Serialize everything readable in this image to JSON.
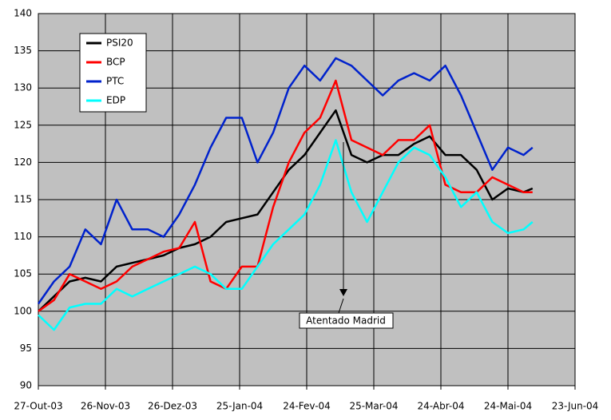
{
  "chart_data": {
    "type": "line",
    "x": [
      "2003-10-27",
      "2003-11-03",
      "2003-11-10",
      "2003-11-17",
      "2003-11-24",
      "2003-12-01",
      "2003-12-08",
      "2003-12-15",
      "2003-12-22",
      "2003-12-29",
      "2004-01-05",
      "2004-01-12",
      "2004-01-19",
      "2004-01-26",
      "2004-02-02",
      "2004-02-09",
      "2004-02-16",
      "2004-02-23",
      "2004-03-01",
      "2004-03-08",
      "2004-03-15",
      "2004-03-22",
      "2004-03-29",
      "2004-04-05",
      "2004-04-12",
      "2004-04-19",
      "2004-04-26",
      "2004-05-03",
      "2004-05-10",
      "2004-05-17",
      "2004-05-24",
      "2004-05-31",
      "2004-06-04"
    ],
    "series": [
      {
        "name": "PSI20",
        "color": "#000000",
        "values": [
          100,
          102,
          104,
          104.5,
          104,
          106,
          106.5,
          107,
          107.5,
          108.5,
          109,
          110,
          112,
          112.5,
          113,
          116,
          119,
          121,
          124,
          127,
          121,
          120,
          121,
          121,
          122.5,
          123.5,
          121,
          121,
          119,
          115,
          116.5,
          116,
          116.5
        ]
      },
      {
        "name": "BCP",
        "color": "#ff0000",
        "values": [
          100,
          101.5,
          105,
          104,
          103,
          104,
          106,
          107,
          108,
          108.5,
          112,
          104,
          103,
          106,
          106,
          114,
          120,
          124,
          126,
          131,
          123,
          122,
          121,
          123,
          123,
          125,
          117,
          116,
          116,
          118,
          117,
          116,
          116
        ]
      },
      {
        "name": "PTC",
        "color": "#0022cc",
        "values": [
          101,
          104,
          106,
          111,
          109,
          115,
          111,
          111,
          110,
          113,
          117,
          122,
          126,
          126,
          120,
          124,
          130,
          133,
          131,
          134,
          133,
          131,
          129,
          131,
          132,
          131,
          133,
          129,
          124,
          119,
          122,
          121,
          122
        ]
      },
      {
        "name": "EDP",
        "color": "#00ffff",
        "values": [
          99.5,
          97.5,
          100.5,
          101,
          101,
          103,
          102,
          103,
          104,
          105,
          106,
          105,
          103,
          103,
          106,
          109,
          111,
          113,
          117,
          123,
          116,
          112,
          116,
          120,
          122,
          121,
          118,
          114,
          116,
          112,
          110.5,
          111,
          112
        ]
      }
    ],
    "xlim": [
      "2003-10-27",
      "2004-06-23"
    ],
    "xticks": [
      {
        "value": "2003-10-27",
        "label": "27-Out-03"
      },
      {
        "value": "2003-11-26",
        "label": "26-Nov-03"
      },
      {
        "value": "2003-12-26",
        "label": "26-Dez-03"
      },
      {
        "value": "2004-01-25",
        "label": "25-Jan-04"
      },
      {
        "value": "2004-02-24",
        "label": "24-Fev-04"
      },
      {
        "value": "2004-03-25",
        "label": "25-Mar-04"
      },
      {
        "value": "2004-04-24",
        "label": "24-Abr-04"
      },
      {
        "value": "2004-05-24",
        "label": "24-Mai-04"
      },
      {
        "value": "2004-06-23",
        "label": "23-Jun-04"
      }
    ],
    "ylim": [
      90,
      140
    ],
    "yticks": [
      90,
      95,
      100,
      105,
      110,
      115,
      120,
      125,
      130,
      135,
      140
    ],
    "grid": true,
    "legend": "upper left",
    "annotation": "Atentado Madrid"
  }
}
